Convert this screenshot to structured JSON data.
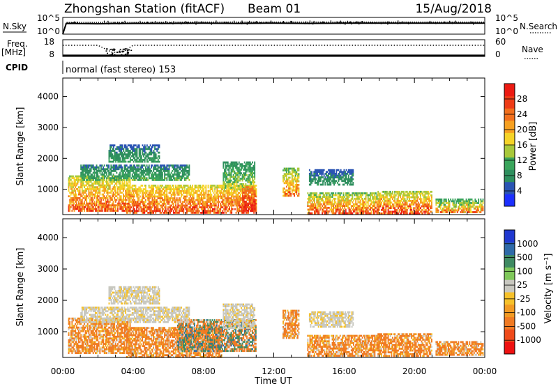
{
  "header": {
    "station": "Zhongshan Station (fitACF)",
    "beam": "Beam 01",
    "date": "15/Aug/2018"
  },
  "panel_labels": {
    "nsky": "N.Sky",
    "nsearch": "N.Search",
    "freq_line1": "Freq.",
    "freq_line2": "[MHz]",
    "nave": "Nave",
    "cpid": "CPID",
    "cpid_value": "normal (fast stereo) 153"
  },
  "colors": {
    "power_scale": [
      "#1c2fff",
      "#2a54b3",
      "#2e8f5e",
      "#3aa55c",
      "#a8c83a",
      "#f5d327",
      "#f6a020",
      "#f26f1c",
      "#ee3b16",
      "#ec1a12"
    ],
    "velocity_scale": [
      "#ee1111",
      "#ef4a1a",
      "#f07a22",
      "#f29a22",
      "#f6c12a",
      "#c8c8c0",
      "#7fc85a",
      "#3f8a62",
      "#2e6aa8",
      "#2038d0"
    ]
  },
  "chart_data": [
    {
      "type": "line",
      "name": "noise",
      "y_tick_labels_left": [
        "10^5",
        "10^0"
      ],
      "y_tick_labels_right": [
        "10^5",
        "10^0"
      ],
      "series": [
        {
          "name": "N.Sky",
          "style": "solid",
          "x_hours": [
            0,
            0.2,
            2,
            4,
            6,
            8,
            10,
            12,
            14,
            16,
            18,
            20,
            22,
            24
          ],
          "log10_value": [
            0,
            3.2,
            3.1,
            3.2,
            3.2,
            3.3,
            3.2,
            3.3,
            3.2,
            3.3,
            3.3,
            3.3,
            3.3,
            3.3
          ]
        },
        {
          "name": "N.Search",
          "style": "dotted",
          "x_hours": [
            0,
            0.2,
            4,
            8,
            12,
            16,
            20,
            24
          ],
          "log10_value": [
            0,
            3.5,
            3.5,
            3.6,
            3.6,
            3.6,
            3.6,
            3.6
          ]
        }
      ]
    },
    {
      "type": "line",
      "name": "frequency",
      "y_tick_labels_left": [
        "18",
        "8"
      ],
      "y_tick_labels_right": [
        "60",
        "0"
      ],
      "series": [
        {
          "name": "Freq. [MHz]",
          "style": "solid",
          "x_hours": [
            0,
            24
          ],
          "y": [
            8.6,
            8.6
          ]
        },
        {
          "name": "Nave",
          "style": "dotted",
          "x_hours": [
            0,
            2,
            2.8,
            3.4,
            4,
            24
          ],
          "y": [
            40,
            40,
            15,
            15,
            40,
            40
          ]
        }
      ]
    },
    {
      "type": "heatmap",
      "name": "power",
      "xlabel": "",
      "ylabel": "Slant Range [km]",
      "y_ticks": [
        1000,
        2000,
        3000,
        4000
      ],
      "ylim": [
        180,
        4600
      ],
      "xlim_hours": [
        0,
        24
      ],
      "colorbar_label": "Power [dB]",
      "colorbar_ticks": [
        "4",
        "8",
        "12",
        "16",
        "20",
        "24",
        "28"
      ],
      "colorbar_range": [
        0,
        30
      ],
      "regions": [
        {
          "t0": 0.3,
          "t1": 3.8,
          "r0": 300,
          "r1": 1450,
          "v0": 8,
          "v1": 26
        },
        {
          "t0": 3.6,
          "t1": 11.0,
          "r0": 220,
          "r1": 1150,
          "v0": 10,
          "v1": 27
        },
        {
          "t0": 1.0,
          "t1": 7.2,
          "r0": 1300,
          "r1": 1800,
          "v0": 3,
          "v1": 12
        },
        {
          "t0": 2.6,
          "t1": 5.5,
          "r0": 1900,
          "r1": 2450,
          "v0": 3,
          "v1": 10
        },
        {
          "t0": 9.1,
          "t1": 10.9,
          "r0": 1000,
          "r1": 1900,
          "v0": 4,
          "v1": 16
        },
        {
          "t0": 12.5,
          "t1": 13.4,
          "r0": 800,
          "r1": 1700,
          "v0": 6,
          "v1": 24
        },
        {
          "t0": 13.9,
          "t1": 18.0,
          "r0": 250,
          "r1": 900,
          "v0": 5,
          "v1": 27
        },
        {
          "t0": 14.0,
          "t1": 16.5,
          "r0": 1150,
          "r1": 1650,
          "v0": 3,
          "v1": 9
        },
        {
          "t0": 17.9,
          "t1": 21.0,
          "r0": 200,
          "r1": 950,
          "v0": 6,
          "v1": 29
        },
        {
          "t0": 21.2,
          "t1": 23.9,
          "r0": 250,
          "r1": 700,
          "v0": 3,
          "v1": 24
        },
        {
          "t0": 10.2,
          "t1": 10.9,
          "r0": 300,
          "r1": 1100,
          "v0": 18,
          "v1": 29
        }
      ]
    },
    {
      "type": "heatmap",
      "name": "velocity",
      "xlabel": "Time UT",
      "ylabel": "Slant Range [km]",
      "x_tick_labels": [
        "00:00",
        "04:00",
        "08:00",
        "12:00",
        "16:00",
        "20:00",
        "00:00"
      ],
      "x_ticks_hours": [
        0,
        4,
        8,
        12,
        16,
        20,
        24
      ],
      "y_ticks": [
        1000,
        2000,
        3000,
        4000
      ],
      "ylim": [
        180,
        4600
      ],
      "xlim_hours": [
        0,
        24
      ],
      "colorbar_label": "Velocity [m s⁻¹]",
      "colorbar_ticks": [
        "-1000",
        "-500",
        "-100",
        "-25",
        "25",
        "100",
        "500",
        "1000"
      ],
      "regions": [
        {
          "t0": 0.3,
          "t1": 3.8,
          "r0": 300,
          "r1": 1450,
          "kind": "neg"
        },
        {
          "t0": 3.6,
          "t1": 9.0,
          "r0": 220,
          "r1": 1150,
          "kind": "neg"
        },
        {
          "t0": 6.5,
          "t1": 11.0,
          "r0": 400,
          "r1": 1400,
          "kind": "mix"
        },
        {
          "t0": 1.0,
          "t1": 7.2,
          "r0": 1300,
          "r1": 1800,
          "kind": "low"
        },
        {
          "t0": 2.6,
          "t1": 5.5,
          "r0": 1900,
          "r1": 2450,
          "kind": "low"
        },
        {
          "t0": 9.1,
          "t1": 10.9,
          "r0": 1100,
          "r1": 1900,
          "kind": "low"
        },
        {
          "t0": 12.5,
          "t1": 13.4,
          "r0": 800,
          "r1": 1700,
          "kind": "neg"
        },
        {
          "t0": 13.9,
          "t1": 18.0,
          "r0": 250,
          "r1": 900,
          "kind": "neg"
        },
        {
          "t0": 14.0,
          "t1": 16.5,
          "r0": 1150,
          "r1": 1650,
          "kind": "low"
        },
        {
          "t0": 17.9,
          "t1": 21.0,
          "r0": 200,
          "r1": 950,
          "kind": "neg"
        },
        {
          "t0": 21.2,
          "t1": 23.9,
          "r0": 250,
          "r1": 700,
          "kind": "neg"
        }
      ]
    }
  ]
}
